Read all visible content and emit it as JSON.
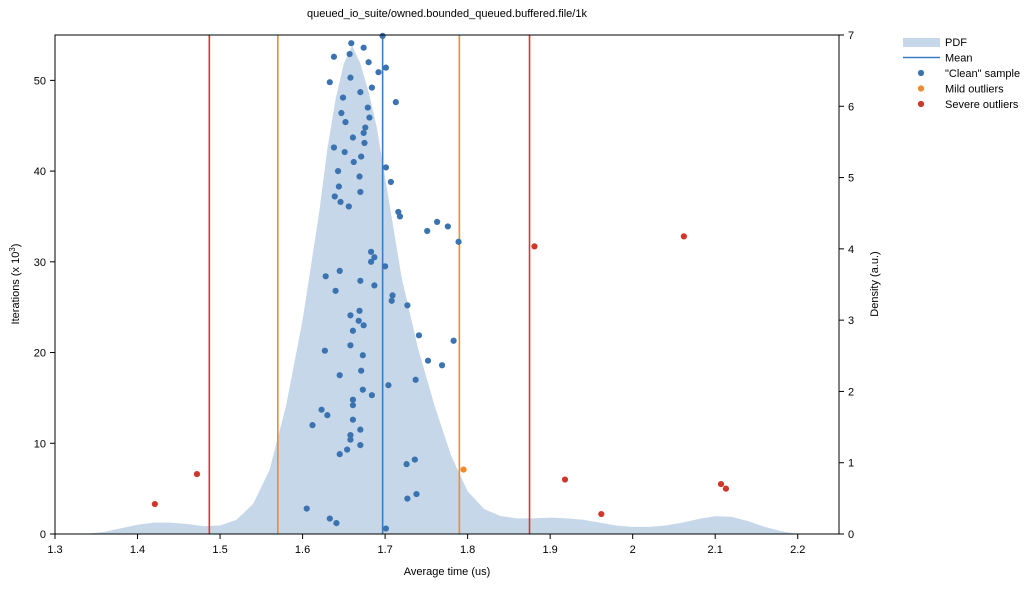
{
  "chart_data": {
    "type": "scatter",
    "title": "queued_io_suite/owned.bounded_queued.buffered.file/1k",
    "xlabel": "Average time (us)",
    "ylabel_main": "Iterations (x 10",
    "ylabel_exp": "3",
    "ylabel_close": ")",
    "y2label": "Density (a.u.)",
    "xlim": [
      1.3,
      2.25
    ],
    "ylim": [
      0,
      55
    ],
    "y2lim": [
      0,
      7
    ],
    "x_ticks": [
      1.3,
      1.4,
      1.5,
      1.6,
      1.7,
      1.8,
      1.9,
      2.0,
      2.1,
      2.2
    ],
    "x_tick_labels": [
      "1.3",
      "1.4",
      "1.5",
      "1.6",
      "1.7",
      "1.8",
      "1.9",
      "2",
      "2.1",
      "2.2"
    ],
    "y_ticks": [
      0,
      10,
      20,
      30,
      40,
      50
    ],
    "y_tick_labels": [
      "0",
      "10",
      "20",
      "30",
      "40",
      "50"
    ],
    "y2_ticks": [
      0,
      1,
      2,
      3,
      4,
      5,
      6,
      7
    ],
    "y2_tick_labels": [
      "0",
      "1",
      "2",
      "3",
      "4",
      "5",
      "6",
      "7"
    ],
    "colors": {
      "pdf_fill": "#c6d7e9",
      "mean": "#3d7cc0",
      "clean": "#3a73b0",
      "mild": "#ef8a2f",
      "severe": "#d0372b",
      "severe_line": "#e5312b"
    },
    "legend": [
      {
        "name": "PDF",
        "kind": "area"
      },
      {
        "name": "Mean",
        "kind": "line"
      },
      {
        "name": "\"Clean\" sample",
        "kind": "point-clean"
      },
      {
        "name": "Mild outliers",
        "kind": "point-mild"
      },
      {
        "name": "Severe outliers",
        "kind": "point-severe"
      }
    ],
    "mean": 1.697,
    "mild_thresholds": [
      1.57,
      1.79
    ],
    "severe_thresholds": [
      1.487,
      1.875
    ],
    "pdf": {
      "x": [
        1.335,
        1.36,
        1.38,
        1.4,
        1.42,
        1.44,
        1.46,
        1.48,
        1.5,
        1.52,
        1.54,
        1.56,
        1.58,
        1.6,
        1.62,
        1.63,
        1.64,
        1.65,
        1.66,
        1.67,
        1.68,
        1.69,
        1.7,
        1.71,
        1.72,
        1.74,
        1.76,
        1.78,
        1.8,
        1.82,
        1.84,
        1.86,
        1.88,
        1.9,
        1.92,
        1.94,
        1.96,
        1.98,
        2.0,
        2.02,
        2.04,
        2.06,
        2.08,
        2.1,
        2.12,
        2.14,
        2.16,
        2.18,
        2.2
      ],
      "density": [
        0.0,
        0.03,
        0.08,
        0.13,
        0.16,
        0.16,
        0.14,
        0.11,
        0.12,
        0.2,
        0.42,
        0.9,
        1.8,
        3.0,
        4.5,
        5.4,
        6.1,
        6.6,
        6.85,
        6.6,
        6.2,
        5.7,
        5.0,
        4.3,
        3.6,
        2.6,
        1.8,
        1.1,
        0.6,
        0.35,
        0.25,
        0.22,
        0.22,
        0.23,
        0.22,
        0.2,
        0.16,
        0.12,
        0.1,
        0.1,
        0.12,
        0.16,
        0.21,
        0.25,
        0.24,
        0.18,
        0.1,
        0.04,
        0.0
      ]
    },
    "clean_sample": [
      [
        1.697,
        54.9
      ],
      [
        1.659,
        54.1
      ],
      [
        1.674,
        53.6
      ],
      [
        1.657,
        52.9
      ],
      [
        1.638,
        52.6
      ],
      [
        1.68,
        52.0
      ],
      [
        1.701,
        51.4
      ],
      [
        1.692,
        50.9
      ],
      [
        1.658,
        50.3
      ],
      [
        1.633,
        49.8
      ],
      [
        1.684,
        49.2
      ],
      [
        1.67,
        48.7
      ],
      [
        1.649,
        48.1
      ],
      [
        1.713,
        47.6
      ],
      [
        1.679,
        47.0
      ],
      [
        1.647,
        46.4
      ],
      [
        1.681,
        45.9
      ],
      [
        1.652,
        45.4
      ],
      [
        1.676,
        44.8
      ],
      [
        1.674,
        44.2
      ],
      [
        1.661,
        43.7
      ],
      [
        1.675,
        43.1
      ],
      [
        1.638,
        42.6
      ],
      [
        1.651,
        42.1
      ],
      [
        1.671,
        41.6
      ],
      [
        1.662,
        41.0
      ],
      [
        1.701,
        40.4
      ],
      [
        1.643,
        40.0
      ],
      [
        1.669,
        39.4
      ],
      [
        1.707,
        38.8
      ],
      [
        1.644,
        38.3
      ],
      [
        1.67,
        37.7
      ],
      [
        1.639,
        37.2
      ],
      [
        1.646,
        36.6
      ],
      [
        1.656,
        36.1
      ],
      [
        1.716,
        35.5
      ],
      [
        1.718,
        35.0
      ],
      [
        1.763,
        34.4
      ],
      [
        1.776,
        33.9
      ],
      [
        1.751,
        33.4
      ],
      [
        1.789,
        32.2
      ],
      [
        1.683,
        31.1
      ],
      [
        1.687,
        30.5
      ],
      [
        1.683,
        30.0
      ],
      [
        1.7,
        29.5
      ],
      [
        1.645,
        29.0
      ],
      [
        1.628,
        28.4
      ],
      [
        1.67,
        27.9
      ],
      [
        1.687,
        27.4
      ],
      [
        1.64,
        26.8
      ],
      [
        1.709,
        26.3
      ],
      [
        1.708,
        25.7
      ],
      [
        1.727,
        25.2
      ],
      [
        1.669,
        24.6
      ],
      [
        1.658,
        24.1
      ],
      [
        1.668,
        23.5
      ],
      [
        1.674,
        23.0
      ],
      [
        1.661,
        22.4
      ],
      [
        1.741,
        21.9
      ],
      [
        1.783,
        21.3
      ],
      [
        1.658,
        20.8
      ],
      [
        1.627,
        20.2
      ],
      [
        1.673,
        19.7
      ],
      [
        1.752,
        19.1
      ],
      [
        1.769,
        18.6
      ],
      [
        1.671,
        18.0
      ],
      [
        1.645,
        17.5
      ],
      [
        1.737,
        17.0
      ],
      [
        1.704,
        16.4
      ],
      [
        1.673,
        15.9
      ],
      [
        1.684,
        15.3
      ],
      [
        1.661,
        14.8
      ],
      [
        1.661,
        14.2
      ],
      [
        1.623,
        13.7
      ],
      [
        1.63,
        13.1
      ],
      [
        1.661,
        12.6
      ],
      [
        1.612,
        12.0
      ],
      [
        1.67,
        11.5
      ],
      [
        1.658,
        10.9
      ],
      [
        1.658,
        10.4
      ],
      [
        1.67,
        9.8
      ],
      [
        1.654,
        9.3
      ],
      [
        1.645,
        8.8
      ],
      [
        1.736,
        8.2
      ],
      [
        1.726,
        7.7
      ],
      [
        1.738,
        4.4
      ],
      [
        1.727,
        3.9
      ],
      [
        1.605,
        2.8
      ],
      [
        1.633,
        1.7
      ],
      [
        1.641,
        1.2
      ],
      [
        1.701,
        0.6
      ]
    ],
    "mild_outliers": [
      [
        1.795,
        7.1
      ]
    ],
    "severe_outliers": [
      [
        1.472,
        6.6
      ],
      [
        1.421,
        3.3
      ],
      [
        1.881,
        31.7
      ],
      [
        2.062,
        32.8
      ],
      [
        1.918,
        6.0
      ],
      [
        2.107,
        5.5
      ],
      [
        2.113,
        5.0
      ],
      [
        1.962,
        2.2
      ]
    ]
  }
}
